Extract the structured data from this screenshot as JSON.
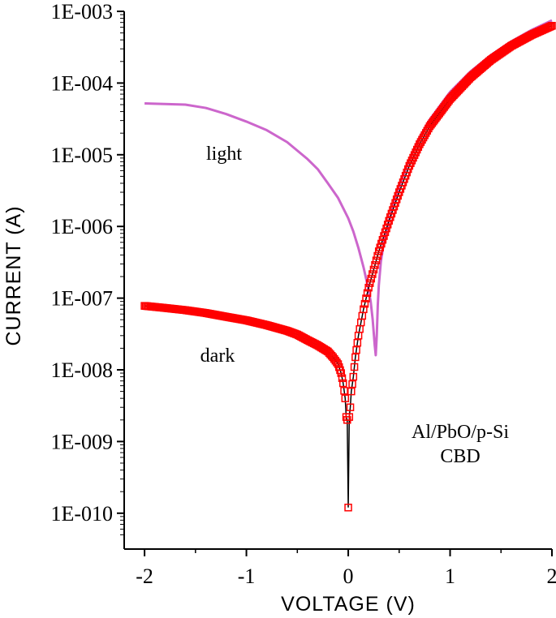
{
  "chart_data": {
    "type": "scatter",
    "xlabel": "VOLTAGE (V)",
    "ylabel": "CURRENT (A)",
    "xlim": [
      -2.2,
      2.0
    ],
    "ylim_exponents": [
      -10.5,
      -3
    ],
    "y_scale": "log",
    "x_ticks": [
      -2,
      -1,
      0,
      1,
      2
    ],
    "x_tick_labels": [
      "-2",
      "-1",
      "0",
      "1",
      "2"
    ],
    "y_ticks": [
      1e-10,
      1e-09,
      1e-08,
      1e-07,
      1e-06,
      1e-05,
      0.0001,
      0.001
    ],
    "y_tick_labels": [
      "1E-010",
      "1E-009",
      "1E-008",
      "1E-007",
      "1E-006",
      "1E-005",
      "1E-004",
      "1E-003"
    ],
    "grid": false,
    "annotations": {
      "light": "light",
      "dark": "dark",
      "sample_line1": "Al/PbO/p-Si",
      "sample_line2": "CBD"
    },
    "series": [
      {
        "color": "#cc66cc",
        "style": "line",
        "x": [
          -2.0,
          -1.8,
          -1.6,
          -1.4,
          -1.2,
          -1.0,
          -0.8,
          -0.6,
          -0.4,
          -0.3,
          -0.2,
          -0.1,
          0.0,
          0.05,
          0.1,
          0.15,
          0.2,
          0.22,
          0.24,
          0.26,
          0.27,
          0.28,
          0.29,
          0.3,
          0.32,
          0.35,
          0.4,
          0.5,
          0.6,
          0.7,
          0.8,
          1.0,
          1.2,
          1.4,
          1.6,
          1.8,
          2.0
        ],
        "y": [
          5.2e-05,
          5.1e-05,
          5e-05,
          4.5e-05,
          3.7e-05,
          2.9e-05,
          2.2e-05,
          1.5e-05,
          8.7e-06,
          6.3e-06,
          4e-06,
          2.5e-06,
          1.3e-06,
          8.5e-07,
          5e-07,
          2.7e-07,
          1.3e-07,
          9e-08,
          5e-08,
          2.2e-08,
          1.6e-08,
          3e-08,
          8e-08,
          1.5e-07,
          3.2e-07,
          6e-07,
          1.2e-06,
          3.6e-06,
          8.5e-06,
          1.75e-05,
          3.1e-05,
          7.5e-05,
          0.000145,
          0.000245,
          0.00038,
          0.00055,
          0.00075
        ]
      },
      {
        "color": "#ff0000",
        "style": "markers",
        "x": [
          -2.0,
          -1.8,
          -1.6,
          -1.4,
          -1.2,
          -1.0,
          -0.8,
          -0.6,
          -0.5,
          -0.4,
          -0.3,
          -0.2,
          -0.15,
          -0.1,
          -0.07,
          -0.05,
          -0.03,
          -0.02,
          -0.01,
          0.0,
          0.01,
          0.02,
          0.03,
          0.05,
          0.07,
          0.1,
          0.15,
          0.2,
          0.25,
          0.3,
          0.4,
          0.5,
          0.6,
          0.7,
          0.8,
          1.0,
          1.2,
          1.4,
          1.6,
          1.8,
          2.0
        ],
        "y": [
          7.8e-08,
          7.3e-08,
          6.8e-08,
          6.2e-08,
          5.5e-08,
          4.9e-08,
          4.2e-08,
          3.5e-08,
          3.1e-08,
          2.6e-08,
          2.2e-08,
          1.8e-08,
          1.5e-08,
          1.2e-08,
          9e-09,
          6.5e-09,
          4e-09,
          2.2e-09,
          2e-09,
          1.2e-10,
          2.2e-09,
          3e-09,
          5e-09,
          8e-09,
          1.5e-08,
          3e-08,
          7e-08,
          1.4e-07,
          2.5e-07,
          4.5e-07,
          1.2e-06,
          3e-06,
          7e-06,
          1.4e-05,
          2.5e-05,
          6e-05,
          0.00012,
          0.00021,
          0.00033,
          0.00047,
          0.00063
        ]
      }
    ]
  }
}
